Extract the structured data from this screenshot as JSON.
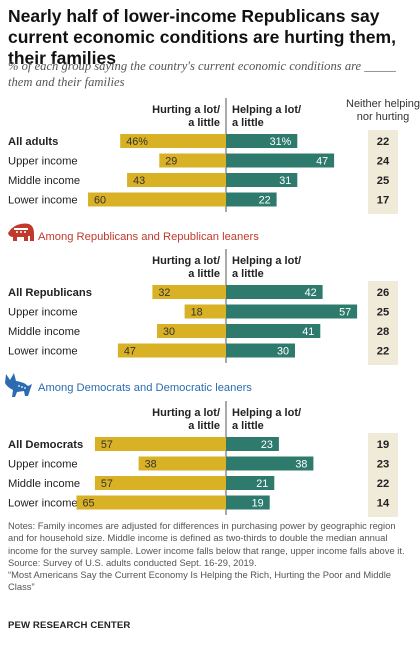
{
  "title": "Nearly half of lower-income Republicans say current economic conditions are hurting them, their families",
  "subtitle": "% of each group saying the country's current economic conditions are _____ them and their families",
  "chart_data": {
    "type": "bar",
    "colors": {
      "hurting": "#d9b125",
      "helping": "#2e7b6e",
      "neither_bg": "#efebd8"
    },
    "column_headers": {
      "hurting": [
        "Hurting a lot/",
        "a little"
      ],
      "helping": [
        "Helping a lot/",
        "a little"
      ],
      "neither": [
        "Neither helping",
        "nor hurting"
      ]
    },
    "panels": [
      {
        "heading": "",
        "icon": "",
        "show_neither_header": true,
        "categories": [
          "All adults",
          "Upper income",
          "Middle income",
          "Lower income"
        ],
        "bold_first": true,
        "series": [
          {
            "name": "Hurting a lot/a little",
            "values": [
              46,
              29,
              43,
              60
            ],
            "labels": [
              "46%",
              "29",
              "43",
              "60"
            ]
          },
          {
            "name": "Helping a lot/a little",
            "values": [
              31,
              47,
              31,
              22
            ],
            "labels": [
              "31%",
              "47",
              "31",
              "22"
            ]
          },
          {
            "name": "Neither helping nor hurting",
            "values": [
              22,
              24,
              25,
              17
            ],
            "labels": [
              "22",
              "24",
              "25",
              "17"
            ]
          }
        ]
      },
      {
        "heading": "Among Republicans and Republican leaners",
        "heading_color": "#c0392b",
        "icon": "elephant-icon",
        "show_neither_header": false,
        "categories": [
          "All Republicans",
          "Upper income",
          "Middle income",
          "Lower income"
        ],
        "bold_first": true,
        "series": [
          {
            "name": "Hurting a lot/a little",
            "values": [
              32,
              18,
              30,
              47
            ],
            "labels": [
              "32",
              "18",
              "30",
              "47"
            ]
          },
          {
            "name": "Helping a lot/a little",
            "values": [
              42,
              57,
              41,
              30
            ],
            "labels": [
              "42",
              "57",
              "41",
              "30"
            ]
          },
          {
            "name": "Neither helping nor hurting",
            "values": [
              26,
              25,
              28,
              22
            ],
            "labels": [
              "26",
              "25",
              "28",
              "22"
            ]
          }
        ]
      },
      {
        "heading": "Among Democrats and Democratic leaners",
        "heading_color": "#2b6cb0",
        "icon": "donkey-icon",
        "show_neither_header": false,
        "categories": [
          "All Democrats",
          "Upper income",
          "Middle income",
          "Lower income"
        ],
        "bold_first": true,
        "series": [
          {
            "name": "Hurting a lot/a little",
            "values": [
              57,
              38,
              57,
              65
            ],
            "labels": [
              "57",
              "38",
              "57",
              "65"
            ]
          },
          {
            "name": "Helping a lot/a little",
            "values": [
              23,
              38,
              21,
              19
            ],
            "labels": [
              "23",
              "38",
              "21",
              "19"
            ]
          },
          {
            "name": "Neither helping nor hurting",
            "values": [
              19,
              23,
              22,
              14
            ],
            "labels": [
              "19",
              "23",
              "22",
              "14"
            ]
          }
        ]
      }
    ]
  },
  "notes": [
    "Notes: Family incomes are adjusted for differences in purchasing power by geographic region and for household size. Middle income is defined as two-thirds to double the median annual income for the survey sample. Lower income falls below that range, upper income falls above it.",
    "Source: Survey of U.S. adults conducted Sept. 16-29, 2019.",
    "“Most Americans Say the Current Economy Is Helping the Rich, Hurting the Poor and Middle Class”"
  ],
  "brand": "PEW RESEARCH CENTER"
}
